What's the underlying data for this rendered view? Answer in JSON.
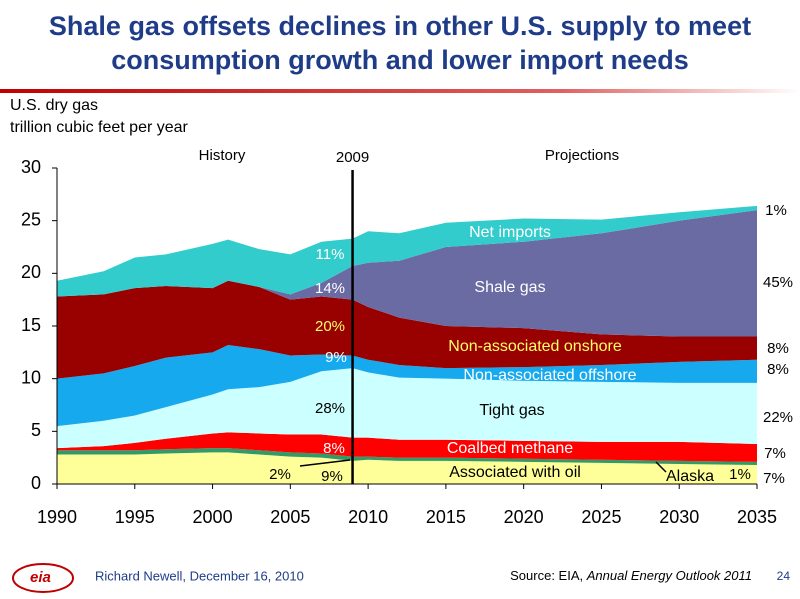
{
  "chart_data": {
    "type": "stacked_area",
    "title_lines": [
      "Shale gas offsets declines in other U.S. supply to meet",
      "consumption growth and lower import needs"
    ],
    "ylabel_lines": [
      "U.S. dry gas",
      "trillion cubic feet per year"
    ],
    "x": [
      1990,
      1993,
      1995,
      1997,
      2000,
      2001,
      2003,
      2005,
      2007,
      2009,
      2010,
      2012,
      2015,
      2020,
      2025,
      2030,
      2035
    ],
    "xlim": [
      1990,
      2035
    ],
    "xticks": [
      1990,
      1995,
      2000,
      2005,
      2010,
      2015,
      2020,
      2025,
      2030,
      2035
    ],
    "ylim": [
      0,
      30
    ],
    "yticks": [
      0,
      5,
      10,
      15,
      20,
      25,
      30
    ],
    "divider": {
      "x": 2009,
      "label": "2009"
    },
    "period_labels": [
      "History",
      "Projections"
    ],
    "series": [
      {
        "name": "Associated with oil",
        "color": "#ffff99",
        "values": [
          2.8,
          2.8,
          2.8,
          2.9,
          3.0,
          3.0,
          2.8,
          2.6,
          2.5,
          2.2,
          2.3,
          2.2,
          2.2,
          2.1,
          2.0,
          1.9,
          1.8
        ]
      },
      {
        "name": "Alaska",
        "color": "#339966",
        "values": [
          0.4,
          0.4,
          0.4,
          0.4,
          0.4,
          0.4,
          0.4,
          0.4,
          0.4,
          0.4,
          0.3,
          0.3,
          0.3,
          0.3,
          0.3,
          0.3,
          0.3
        ]
      },
      {
        "name": "Coalbed methane",
        "color": "#ff0000",
        "values": [
          0.2,
          0.4,
          0.7,
          1.0,
          1.4,
          1.5,
          1.6,
          1.7,
          1.8,
          1.8,
          1.8,
          1.7,
          1.7,
          1.7,
          1.7,
          1.8,
          1.7
        ]
      },
      {
        "name": "Tight gas",
        "color": "#ccffff",
        "values": [
          2.1,
          2.4,
          2.6,
          3.0,
          3.7,
          4.1,
          4.4,
          5.0,
          6.0,
          6.6,
          6.2,
          5.9,
          5.8,
          5.7,
          5.7,
          5.6,
          5.8
        ]
      },
      {
        "name": "Non-associated offshore",
        "color": "#16a9ee",
        "values": [
          4.5,
          4.5,
          4.7,
          4.7,
          4.0,
          4.2,
          3.6,
          2.5,
          1.6,
          1.2,
          1.2,
          1.2,
          1.0,
          1.3,
          1.6,
          2.0,
          2.2
        ]
      },
      {
        "name": "Non-associated onshore",
        "color": "#990000",
        "values": [
          7.8,
          7.5,
          7.4,
          6.8,
          6.1,
          6.1,
          5.9,
          5.3,
          5.5,
          5.3,
          5.0,
          4.5,
          4.0,
          3.7,
          2.9,
          2.4,
          2.2
        ]
      },
      {
        "name": "Shale gas",
        "color": "#6b6ba3",
        "values": [
          0,
          0,
          0,
          0,
          0,
          0,
          0,
          0.5,
          1.3,
          3.2,
          4.2,
          5.4,
          7.5,
          8.2,
          9.6,
          11.0,
          12.0
        ]
      },
      {
        "name": "Net imports",
        "color": "#33cccc",
        "values": [
          1.5,
          2.2,
          2.9,
          3.0,
          4.2,
          3.9,
          3.6,
          3.8,
          3.9,
          2.6,
          3.0,
          2.6,
          2.3,
          2.2,
          1.3,
          0.8,
          0.4
        ]
      }
    ],
    "annotations": [
      "11%",
      "14%",
      "20%",
      "9%",
      "28%",
      "8%",
      "2%",
      "9%",
      "1%",
      "45%",
      "8%",
      "8%",
      "22%",
      "7%",
      "7%",
      "1%"
    ]
  },
  "footer": {
    "author": "Richard Newell, December 16, 2010",
    "source_prefix": "Source:  EIA, ",
    "source_title": "Annual Energy Outlook 2011",
    "page": 24,
    "logo": "eia"
  }
}
